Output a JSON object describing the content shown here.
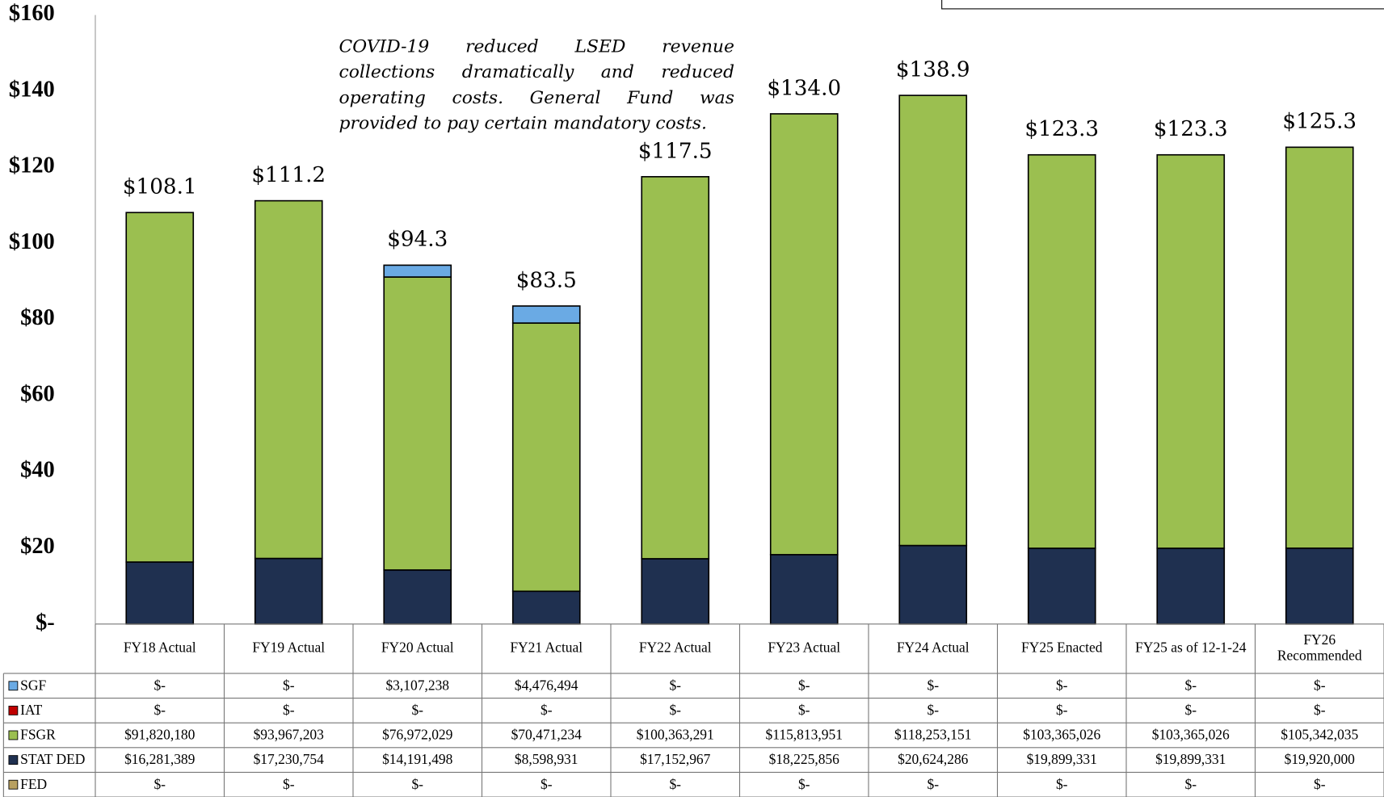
{
  "chart_data": {
    "type": "stacked_bar",
    "annotation": "COVID-19 reduced LSED revenue collections dramatically and reduced operating costs. General Fund was provided to pay certain mandatory costs.",
    "categories": [
      "FY18 Actual",
      "FY19 Actual",
      "FY20 Actual",
      "FY21 Actual",
      "FY22 Actual",
      "FY23 Actual",
      "FY24 Actual",
      "FY25 Enacted",
      "FY25 as of 12-1-24",
      "FY26 Recommended"
    ],
    "series": [
      {
        "name": "SGF",
        "color": "#6aaae4",
        "values": [
          0,
          0,
          3.107238,
          4.476494,
          0,
          0,
          0,
          0,
          0,
          0
        ],
        "value_labels": [
          "$-",
          "$-",
          "$3,107,238",
          "$4,476,494",
          "$-",
          "$-",
          "$-",
          "$-",
          "$-",
          "$-"
        ]
      },
      {
        "name": "IAT",
        "color": "#c00000",
        "values": [
          0,
          0,
          0,
          0,
          0,
          0,
          0,
          0,
          0,
          0
        ],
        "value_labels": [
          "$-",
          "$-",
          "$-",
          "$-",
          "$-",
          "$-",
          "$-",
          "$-",
          "$-",
          "$-"
        ]
      },
      {
        "name": "FSGR",
        "color": "#9bbf50",
        "values": [
          91.82018,
          93.967203,
          76.972029,
          70.471234,
          100.363291,
          115.813951,
          118.253151,
          103.365026,
          103.365026,
          105.342035
        ],
        "value_labels": [
          "$91,820,180",
          "$93,967,203",
          "$76,972,029",
          "$70,471,234",
          "$100,363,291",
          "$115,813,951",
          "$118,253,151",
          "$103,365,026",
          "$103,365,026",
          "$105,342,035"
        ]
      },
      {
        "name": "STAT DED",
        "color": "#1f3050",
        "values": [
          16.281389,
          17.230754,
          14.191498,
          8.598931,
          17.152967,
          18.225856,
          20.624286,
          19.899331,
          19.899331,
          19.92
        ],
        "value_labels": [
          "$16,281,389",
          "$17,230,754",
          "$14,191,498",
          "$8,598,931",
          "$17,152,967",
          "$18,225,856",
          "$20,624,286",
          "$19,899,331",
          "$19,899,331",
          "$19,920,000"
        ]
      },
      {
        "name": "FED",
        "color": "#b8a060",
        "values": [
          0,
          0,
          0,
          0,
          0,
          0,
          0,
          0,
          0,
          0
        ],
        "value_labels": [
          "$-",
          "$-",
          "$-",
          "$-",
          "$-",
          "$-",
          "$-",
          "$-",
          "$-",
          "$-"
        ]
      }
    ],
    "totals": [
      108.1,
      111.2,
      94.3,
      83.5,
      117.5,
      134.0,
      138.9,
      123.3,
      123.3,
      125.3
    ],
    "total_labels": [
      "$108.1",
      "$111.2",
      "$94.3",
      "$83.5",
      "$117.5",
      "$134.0",
      "$138.9",
      "$123.3",
      "$123.3",
      "$125.3"
    ],
    "ylim": [
      0,
      160
    ],
    "yticks": [
      {
        "value": 0,
        "label": "$-"
      },
      {
        "value": 20,
        "label": "$20"
      },
      {
        "value": 40,
        "label": "$40"
      },
      {
        "value": 60,
        "label": "$60"
      },
      {
        "value": 80,
        "label": "$80"
      },
      {
        "value": 100,
        "label": "$100"
      },
      {
        "value": 120,
        "label": "$120"
      },
      {
        "value": 140,
        "label": "$140"
      },
      {
        "value": 160,
        "label": "$160"
      }
    ],
    "grid": false
  }
}
